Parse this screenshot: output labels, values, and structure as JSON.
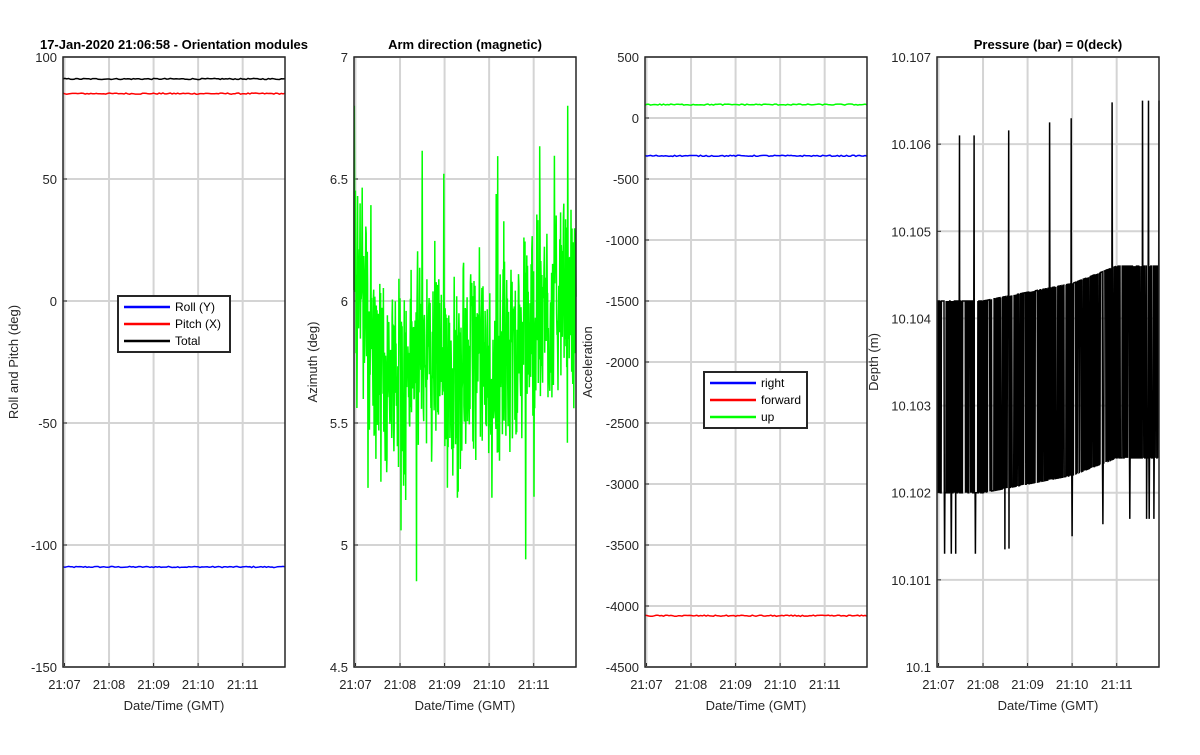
{
  "chart_data": [
    {
      "type": "line",
      "title": "17-Jan-2020 21:06:58 - Orientation modules",
      "xlabel": "Date/Time (GMT)",
      "ylabel": "Roll and Pitch (deg)",
      "xlim": [
        "21:06:58",
        "21:11:57"
      ],
      "ylim": [
        -150,
        100
      ],
      "xticks": [
        "21:07",
        "21:08",
        "21:09",
        "21:10",
        "21:11"
      ],
      "yticks": [
        "-150",
        "-100",
        "-50",
        "0",
        "50",
        "100"
      ],
      "grid": true,
      "legend": "center",
      "x": [
        "21:07",
        "21:08",
        "21:09",
        "21:10",
        "21:11"
      ],
      "series": [
        {
          "name": "Roll (Y)",
          "color": "#0000ff",
          "values": [
            -109,
            -109,
            -109,
            -109,
            -109
          ]
        },
        {
          "name": "Pitch (X)",
          "color": "#ff0000",
          "values": [
            85,
            85,
            85,
            85,
            85
          ]
        },
        {
          "name": "Total",
          "color": "#000000",
          "values": [
            91,
            91,
            91,
            91,
            91
          ]
        }
      ]
    },
    {
      "type": "line",
      "title": "Arm direction (magnetic)",
      "xlabel": "Date/Time (GMT)",
      "ylabel": "Azimuth (deg)",
      "xlim": [
        "21:06:58",
        "21:11:57"
      ],
      "ylim": [
        4.5,
        7
      ],
      "xticks": [
        "21:07",
        "21:08",
        "21:09",
        "21:10",
        "21:11"
      ],
      "yticks": [
        "4.5",
        "5",
        "5.5",
        "6",
        "6.5",
        "7"
      ],
      "grid": true,
      "x": [
        "21:07",
        "21:07:30",
        "21:08",
        "21:08:30",
        "21:09",
        "21:09:30",
        "21:10",
        "21:10:30",
        "21:11",
        "21:11:30"
      ],
      "series": [
        {
          "name": "",
          "color": "#00ff00",
          "values": [
            6.2,
            5.7,
            5.7,
            5.8,
            5.7,
            5.75,
            5.7,
            5.8,
            5.9,
            6.0
          ]
        }
      ]
    },
    {
      "type": "line",
      "title": "",
      "xlabel": "Date/Time (GMT)",
      "ylabel": "Acceleration",
      "xlim": [
        "21:06:58",
        "21:11:57"
      ],
      "ylim": [
        -4500,
        500
      ],
      "xticks": [
        "21:07",
        "21:08",
        "21:09",
        "21:10",
        "21:11"
      ],
      "yticks": [
        "-4500",
        "-4000",
        "-3500",
        "-3000",
        "-2500",
        "-2000",
        "-1500",
        "-1000",
        "-500",
        "0",
        "500"
      ],
      "grid": true,
      "legend": "center",
      "x": [
        "21:07",
        "21:08",
        "21:09",
        "21:10",
        "21:11"
      ],
      "series": [
        {
          "name": "right",
          "color": "#0000ff",
          "values": [
            -310,
            -310,
            -310,
            -310,
            -310
          ]
        },
        {
          "name": "forward",
          "color": "#ff0000",
          "values": [
            -4080,
            -4080,
            -4080,
            -4080,
            -4080
          ]
        },
        {
          "name": "up",
          "color": "#00ff00",
          "values": [
            110,
            110,
            110,
            110,
            110
          ]
        }
      ]
    },
    {
      "type": "line",
      "title": "Pressure (bar) = 0(deck)",
      "xlabel": "Date/Time (GMT)",
      "ylabel": "Depth (m)",
      "xlim": [
        "21:06:58",
        "21:11:57"
      ],
      "ylim": [
        10.1,
        10.107
      ],
      "xticks": [
        "21:07",
        "21:08",
        "21:09",
        "21:10",
        "21:11"
      ],
      "yticks": [
        "10.1",
        "10.101",
        "10.102",
        "10.103",
        "10.104",
        "10.105",
        "10.106",
        "10.107"
      ],
      "grid": true,
      "x": [
        "21:07",
        "21:08",
        "21:09",
        "21:10",
        "21:11"
      ],
      "series": [
        {
          "name": "",
          "color": "#000000",
          "values": [
            10.1031,
            10.1031,
            10.1032,
            10.1033,
            10.1035
          ]
        }
      ]
    }
  ]
}
